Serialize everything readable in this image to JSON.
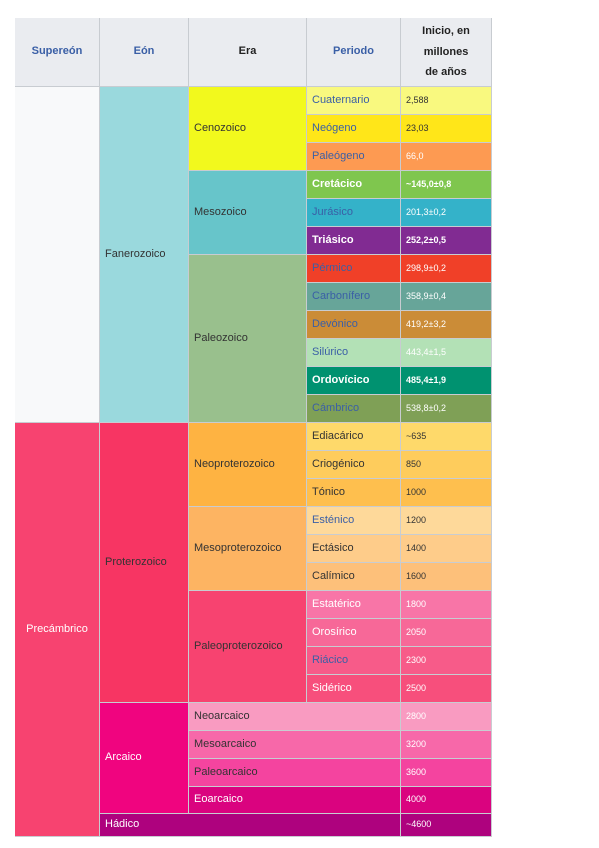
{
  "headers": {
    "supereon": "Supereón",
    "eon": "Eón",
    "era": "Era",
    "periodo": "Periodo",
    "inicio": "Inicio, en\nmillones\nde años"
  },
  "supereons": {
    "fanerozoico_group": "",
    "precambrico": "Precámbrico"
  },
  "eons": {
    "fanerozoico": "Fanerozoico",
    "proterozoico": "Proterozoico",
    "arcaico": "Arcaico",
    "hadico": "Hádico"
  },
  "eras": {
    "cenozoico": "Cenozoico",
    "mesozoico": "Mesozoico",
    "paleozoico": "Paleozoico",
    "neoproterozoico": "Neoproterozoico",
    "mesoproterozoico": "Mesoproterozoico",
    "paleoproterozoico": "Paleoproterozoico",
    "neoarcaico": "Neoarcaico",
    "mesoarcaico": "Mesoarcaico",
    "paleoarcaico": "Paleoarcaico",
    "eoarcaico": "Eoarcaico"
  },
  "periods": [
    {
      "name": "Cuaternario",
      "start": "2,588",
      "color": "#f9f97f"
    },
    {
      "name": "Neógeno",
      "start": "23,03",
      "color": "#ffe619"
    },
    {
      "name": "Paleógeno",
      "start": "66,0",
      "color": "#fd9a52"
    },
    {
      "name": "Cretácico",
      "start": "~145,0±0,8",
      "color": "#7fc64e"
    },
    {
      "name": "Jurásico",
      "start": "201,3±0,2",
      "color": "#34b2c9"
    },
    {
      "name": "Triásico",
      "start": "252,2±0,5",
      "color": "#812b92"
    },
    {
      "name": "Pérmico",
      "start": "298,9±0,2",
      "color": "#f04028"
    },
    {
      "name": "Carbonífero",
      "start": "358,9±0,4",
      "color": "#67a599"
    },
    {
      "name": "Devónico",
      "start": "419,2±3,2",
      "color": "#cb8c37"
    },
    {
      "name": "Silúrico",
      "start": "443,4±1,5",
      "color": "#b3e1b6"
    },
    {
      "name": "Ordovícico",
      "start": "485,4±1,9",
      "color": "#009270"
    },
    {
      "name": "Cámbrico",
      "start": "538,8±0,2",
      "color": "#7fa056"
    },
    {
      "name": "Ediacárico",
      "start": "~635",
      "color": "#fed96a"
    },
    {
      "name": "Criogénico",
      "start": "850",
      "color": "#fecc5c"
    },
    {
      "name": "Tónico",
      "start": "1000",
      "color": "#febf4e"
    },
    {
      "name": "Esténico",
      "start": "1200",
      "color": "#fed99a"
    },
    {
      "name": "Ectásico",
      "start": "1400",
      "color": "#fecc8a"
    },
    {
      "name": "Calímico",
      "start": "1600",
      "color": "#fdc07a"
    },
    {
      "name": "Estatérico",
      "start": "1800",
      "color": "#f875a7"
    },
    {
      "name": "Orosírico",
      "start": "2050",
      "color": "#f76898"
    },
    {
      "name": "Riácico",
      "start": "2300",
      "color": "#f75b89"
    },
    {
      "name": "Sidérico",
      "start": "2500",
      "color": "#f74f7c"
    }
  ],
  "arcaico_eras_start": [
    "2800",
    "3200",
    "3600",
    "4000"
  ],
  "hadico_start": "~4600",
  "colors": {
    "header_bg": "#eaecf0",
    "fanerozoico_supereon": "#f8f9fa",
    "precambrico": "#f74370",
    "fanerozoico_eon": "#9ad9dd",
    "proterozoico": "#f73563",
    "arcaico": "#f0047f",
    "hadico": "#ae027e",
    "cenozoico": "#f2f91d",
    "mesozoico": "#67c5ca",
    "paleozoico": "#99c08d",
    "neoproterozoico": "#feb342",
    "mesoproterozoico": "#fdb462",
    "paleoproterozoico": "#f74370",
    "neoarcaico": "#f99bc1",
    "mesoarcaico": "#f768a9",
    "paleoarcaico": "#f4449f",
    "eoarcaico": "#da037f",
    "link_text": "#3a5fa6"
  }
}
